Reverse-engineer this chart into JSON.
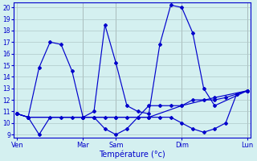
{
  "xlabel": "Température (°c)",
  "background_color": "#d4f0f0",
  "grid_color": "#b0c8c8",
  "line_color": "#0000cc",
  "ylim": [
    8.7,
    20.4
  ],
  "yticks": [
    9,
    10,
    11,
    12,
    13,
    14,
    15,
    16,
    17,
    18,
    19,
    20
  ],
  "day_labels": [
    "Ven",
    "Mar",
    "Sam",
    "Dim",
    "Lun"
  ],
  "day_positions": [
    0,
    6,
    9,
    15,
    21
  ],
  "series": [
    {
      "x": [
        0,
        1,
        2,
        3,
        4,
        5,
        6,
        7,
        8,
        9,
        10,
        11,
        12,
        13,
        14,
        15,
        16,
        17,
        18,
        19,
        20,
        21
      ],
      "y": [
        10.8,
        10.5,
        9.0,
        10.5,
        10.5,
        10.5,
        10.5,
        10.5,
        10.5,
        10.5,
        10.5,
        10.5,
        10.5,
        10.5,
        10.5,
        10.0,
        9.5,
        9.2,
        9.5,
        10.0,
        12.5,
        12.8
      ]
    },
    {
      "x": [
        0,
        1,
        2,
        3,
        4,
        5,
        6,
        7,
        8,
        9,
        10,
        11,
        12,
        13,
        14,
        15,
        16,
        17,
        18,
        21
      ],
      "y": [
        10.8,
        10.5,
        14.8,
        17.0,
        16.8,
        14.5,
        10.5,
        11.0,
        18.5,
        15.2,
        11.5,
        11.0,
        10.8,
        16.8,
        20.2,
        20.0,
        17.8,
        13.0,
        11.5,
        12.8
      ]
    },
    {
      "x": [
        0,
        1,
        6,
        7,
        8,
        9,
        10,
        11,
        12,
        13,
        14,
        15,
        16,
        17,
        18,
        19,
        20,
        21
      ],
      "y": [
        10.8,
        10.5,
        10.5,
        10.5,
        9.5,
        9.0,
        9.5,
        10.5,
        11.5,
        11.5,
        11.5,
        11.5,
        12.0,
        12.0,
        12.0,
        12.2,
        12.5,
        12.8
      ]
    },
    {
      "x": [
        0,
        1,
        6,
        9,
        12,
        15,
        18,
        21
      ],
      "y": [
        10.8,
        10.5,
        10.5,
        10.5,
        10.5,
        11.5,
        12.2,
        12.8
      ]
    }
  ]
}
